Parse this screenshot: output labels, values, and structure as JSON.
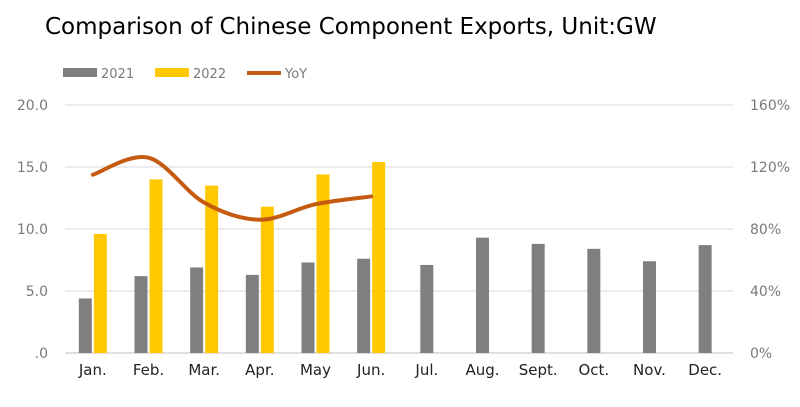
{
  "chart_data": {
    "type": "bar",
    "title": "Comparison of Chinese Component Exports, Unit:GW",
    "categories": [
      "Jan.",
      "Feb.",
      "Mar.",
      "Apr.",
      "May",
      "Jun.",
      "Jul.",
      "Aug.",
      "Sept.",
      "Oct.",
      "Nov.",
      "Dec."
    ],
    "series": [
      {
        "name": "2021",
        "type": "bar",
        "axis": "left",
        "color": "#7f7f7f",
        "values": [
          4.4,
          6.2,
          6.9,
          6.3,
          7.3,
          7.6,
          7.1,
          9.3,
          8.8,
          8.4,
          7.4,
          8.7
        ]
      },
      {
        "name": "2022",
        "type": "bar",
        "axis": "left",
        "color": "#ffc800",
        "values": [
          9.6,
          14.0,
          13.5,
          11.8,
          14.4,
          15.4,
          null,
          null,
          null,
          null,
          null,
          null
        ]
      },
      {
        "name": "YoY",
        "type": "line",
        "axis": "right",
        "smooth": true,
        "color": "#c55a11",
        "values": [
          115,
          126,
          97,
          86,
          96,
          101,
          null,
          null,
          null,
          null,
          null,
          null
        ]
      }
    ],
    "ylim": [
      0,
      20
    ],
    "y_ticks": [
      "20.0",
      "15.0",
      "10.0",
      "5.0",
      ".0"
    ],
    "y2lim": [
      0,
      160
    ],
    "y2_ticks": [
      "160%",
      "120%",
      "80%",
      "40%",
      "0%"
    ],
    "grid": true,
    "legend": "top-left"
  }
}
